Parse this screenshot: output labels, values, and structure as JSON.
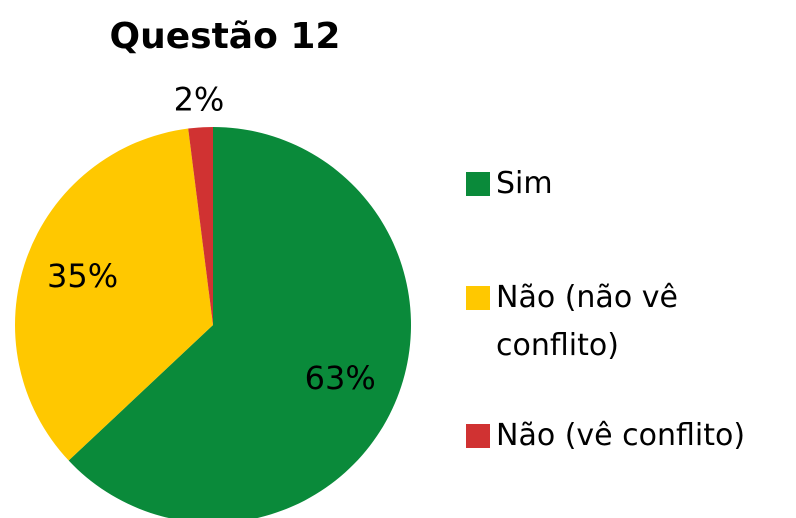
{
  "chart_data": {
    "type": "pie",
    "title": "Questão 12",
    "categories": [
      "Sim",
      "Não (não vê conflito)",
      "Não (vê conflito)"
    ],
    "values": [
      63,
      35,
      2
    ],
    "value_labels": [
      "63%",
      "35%",
      "2%"
    ],
    "colors": [
      "#0a8a3a",
      "#ffc800",
      "#d03232"
    ],
    "legend": "right"
  }
}
